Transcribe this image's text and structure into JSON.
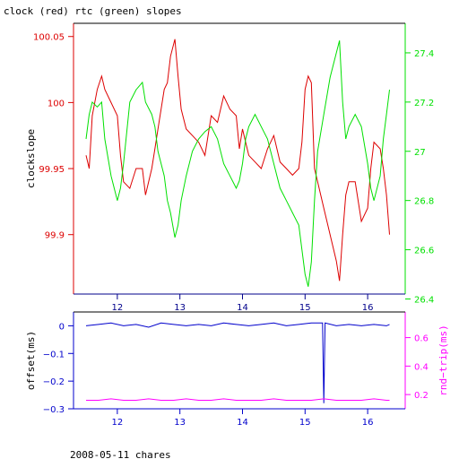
{
  "title": "clock (red) rtc (green) slopes",
  "footer": "2008-05-11 chares",
  "colors": {
    "clock": "#dd0000",
    "rtc": "#00e000",
    "offset": "#0000cc",
    "rndtrip": "#ff00ff",
    "axis": "#000000"
  },
  "chart_data": [
    {
      "type": "line",
      "title": "clock (red) rtc (green) slopes",
      "xlim": [
        11.3,
        16.6
      ],
      "x_ticks": [
        "12",
        "13",
        "14",
        "15",
        "16"
      ],
      "ylabel": "clockslope",
      "ylim": [
        99.855,
        100.06
      ],
      "y_ticks": [
        "99.9",
        "99.95",
        "100",
        "100.05"
      ],
      "y2lim": [
        26.42,
        27.52
      ],
      "y2_ticks": [
        "26.4",
        "26.6",
        "26.8",
        "27",
        "27.2",
        "27.4"
      ],
      "series": [
        {
          "name": "clock",
          "axis": "left",
          "color": "#dd0000",
          "x": [
            11.5,
            11.55,
            11.6,
            11.68,
            11.75,
            11.8,
            11.9,
            12.0,
            12.05,
            12.1,
            12.2,
            12.3,
            12.4,
            12.45,
            12.55,
            12.6,
            12.65,
            12.7,
            12.75,
            12.8,
            12.85,
            12.92,
            12.97,
            13.02,
            13.1,
            13.2,
            13.3,
            13.4,
            13.5,
            13.6,
            13.7,
            13.8,
            13.9,
            13.95,
            14.0,
            14.05,
            14.1,
            14.2,
            14.3,
            14.4,
            14.5,
            14.6,
            14.7,
            14.8,
            14.9,
            14.95,
            15.0,
            15.05,
            15.1,
            15.15,
            15.2,
            15.3,
            15.4,
            15.5,
            15.55,
            15.6,
            15.65,
            15.7,
            15.8,
            15.9,
            16.0,
            16.05,
            16.1,
            16.2,
            16.25,
            16.3,
            16.35
          ],
          "y": [
            99.96,
            99.95,
            99.99,
            100.01,
            100.02,
            100.01,
            100.0,
            99.99,
            99.96,
            99.94,
            99.935,
            99.95,
            99.95,
            99.93,
            99.95,
            99.965,
            99.98,
            99.995,
            100.01,
            100.015,
            100.035,
            100.048,
            100.02,
            99.995,
            99.98,
            99.975,
            99.97,
            99.96,
            99.99,
            99.985,
            100.005,
            99.995,
            99.99,
            99.965,
            99.98,
            99.97,
            99.96,
            99.955,
            99.95,
            99.965,
            99.975,
            99.955,
            99.95,
            99.945,
            99.95,
            99.97,
            100.01,
            100.02,
            100.015,
            99.95,
            99.94,
            99.92,
            99.9,
            99.88,
            99.865,
            99.9,
            99.93,
            99.94,
            99.94,
            99.91,
            99.92,
            99.95,
            99.97,
            99.965,
            99.95,
            99.93,
            99.9
          ]
        },
        {
          "name": "rtc",
          "axis": "right",
          "color": "#00e000",
          "x": [
            11.5,
            11.55,
            11.6,
            11.68,
            11.75,
            11.8,
            11.9,
            12.0,
            12.05,
            12.1,
            12.2,
            12.3,
            12.4,
            12.45,
            12.55,
            12.6,
            12.65,
            12.7,
            12.75,
            12.8,
            12.85,
            12.92,
            12.97,
            13.02,
            13.1,
            13.2,
            13.3,
            13.4,
            13.5,
            13.6,
            13.7,
            13.8,
            13.9,
            13.95,
            14.0,
            14.05,
            14.1,
            14.2,
            14.3,
            14.4,
            14.5,
            14.6,
            14.7,
            14.8,
            14.9,
            14.95,
            15.0,
            15.05,
            15.1,
            15.15,
            15.2,
            15.3,
            15.4,
            15.5,
            15.55,
            15.6,
            15.65,
            15.7,
            15.8,
            15.9,
            16.0,
            16.05,
            16.1,
            16.2,
            16.25,
            16.3,
            16.35
          ],
          "y": [
            27.05,
            27.15,
            27.2,
            27.18,
            27.2,
            27.05,
            26.9,
            26.8,
            26.85,
            26.95,
            27.2,
            27.25,
            27.28,
            27.2,
            27.15,
            27.1,
            27.0,
            26.95,
            26.9,
            26.8,
            26.75,
            26.65,
            26.7,
            26.8,
            26.9,
            27.0,
            27.05,
            27.08,
            27.1,
            27.05,
            26.95,
            26.9,
            26.85,
            26.88,
            26.95,
            27.05,
            27.1,
            27.15,
            27.1,
            27.05,
            26.95,
            26.85,
            26.8,
            26.75,
            26.7,
            26.6,
            26.5,
            26.45,
            26.55,
            26.8,
            27.0,
            27.15,
            27.3,
            27.4,
            27.45,
            27.2,
            27.05,
            27.1,
            27.15,
            27.1,
            26.95,
            26.85,
            26.8,
            26.9,
            27.05,
            27.15,
            27.25
          ]
        }
      ]
    },
    {
      "type": "line",
      "xlim": [
        11.3,
        16.6
      ],
      "x_ticks": [
        "12",
        "13",
        "14",
        "15",
        "16"
      ],
      "ylabel": "offset(ms)",
      "ylim": [
        -0.3,
        0.05
      ],
      "y_ticks": [
        "−0.3",
        "−0.2",
        "−0.1",
        "0"
      ],
      "y2label": "rnd−trip(ms)",
      "y2lim": [
        0.1,
        0.78
      ],
      "y2_ticks": [
        "0.2",
        "0.4",
        "0.6"
      ],
      "series": [
        {
          "name": "offset",
          "axis": "left",
          "color": "#0000cc",
          "x": [
            11.5,
            11.7,
            11.9,
            12.1,
            12.3,
            12.5,
            12.7,
            12.9,
            13.1,
            13.3,
            13.5,
            13.7,
            13.9,
            14.1,
            14.3,
            14.5,
            14.7,
            14.9,
            15.1,
            15.28,
            15.3,
            15.32,
            15.5,
            15.7,
            15.9,
            16.1,
            16.3,
            16.35
          ],
          "y": [
            0.0,
            0.005,
            0.01,
            0.0,
            0.005,
            -0.005,
            0.01,
            0.005,
            0.0,
            0.005,
            0.0,
            0.01,
            0.005,
            0.0,
            0.005,
            0.01,
            0.0,
            0.005,
            0.01,
            0.01,
            -0.28,
            0.01,
            0.0,
            0.005,
            0.0,
            0.005,
            0.0,
            0.005
          ]
        },
        {
          "name": "rnd-trip",
          "axis": "right",
          "color": "#ff00ff",
          "x": [
            11.5,
            11.7,
            11.9,
            12.1,
            12.3,
            12.5,
            12.7,
            12.9,
            13.1,
            13.3,
            13.5,
            13.7,
            13.9,
            14.1,
            14.3,
            14.5,
            14.7,
            14.9,
            15.1,
            15.3,
            15.5,
            15.7,
            15.9,
            16.1,
            16.3,
            16.35
          ],
          "y": [
            0.16,
            0.16,
            0.17,
            0.16,
            0.16,
            0.17,
            0.16,
            0.16,
            0.17,
            0.16,
            0.16,
            0.17,
            0.16,
            0.16,
            0.16,
            0.17,
            0.16,
            0.16,
            0.16,
            0.17,
            0.16,
            0.16,
            0.16,
            0.17,
            0.16,
            0.16
          ]
        }
      ]
    }
  ]
}
